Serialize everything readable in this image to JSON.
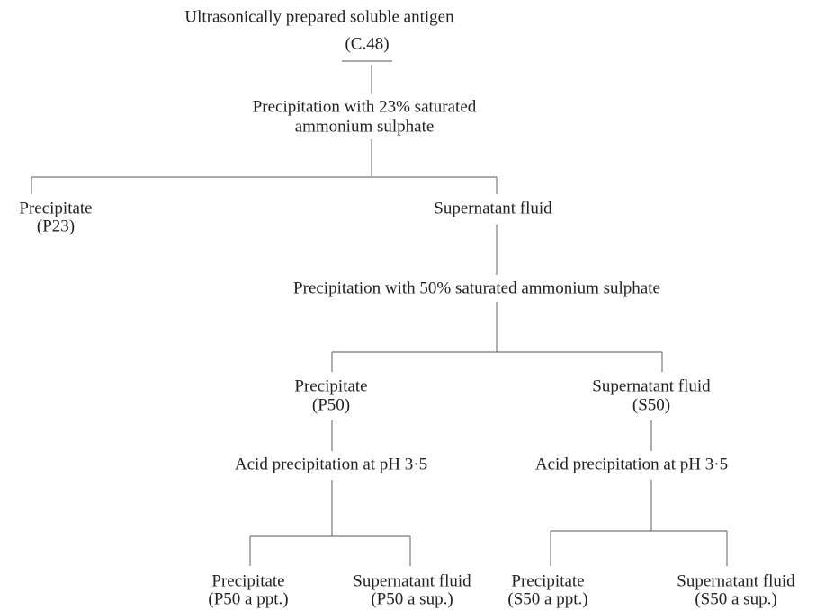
{
  "nodes": [
    {
      "lines": [
        "Ultrasonically prepared soluble antigen",
        "(C.48)"
      ]
    },
    {
      "lines": [
        "Precipitation with 23% saturated",
        "ammonium sulphate"
      ]
    },
    {
      "lines": [
        "Precipitate",
        "(P23)"
      ]
    },
    {
      "lines": [
        "Supernatant fluid"
      ]
    },
    {
      "lines": [
        "Precipitation with 50% saturated ammonium sulphate"
      ]
    },
    {
      "lines": [
        "Precipitate",
        "(P50)"
      ]
    },
    {
      "lines": [
        "Supernatant fluid",
        "(S50)"
      ]
    },
    {
      "lines": [
        "Acid precipitation at pH 3·5"
      ]
    },
    {
      "lines": [
        "Acid precipitation at pH 3·5"
      ]
    },
    {
      "lines": [
        "Precipitate",
        "(P50 a ppt.)"
      ]
    },
    {
      "lines": [
        "Supernatant fluid",
        "(P50 a sup.)"
      ]
    },
    {
      "lines": [
        "Precipitate",
        "(S50 a ppt.)"
      ]
    },
    {
      "lines": [
        "Supernatant fluid",
        "(S50 a sup.)"
      ]
    }
  ]
}
